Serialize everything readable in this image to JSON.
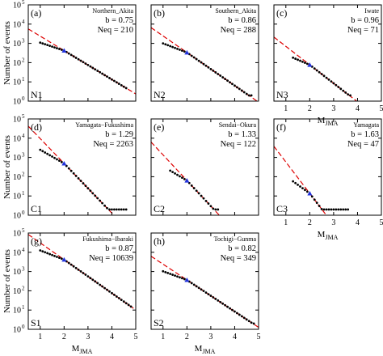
{
  "figure": {
    "ylabel": "Number of events",
    "xlabel_main": "M",
    "xlabel_sub": "JMA",
    "x_ticks": [
      "1",
      "2",
      "3",
      "4",
      "5"
    ],
    "y_tick_base": "10",
    "y_tick_exps": [
      "0",
      "1",
      "2",
      "3",
      "4",
      "5"
    ]
  },
  "chart_data": [
    {
      "type": "scatter",
      "letter": "(a)",
      "region": "Northern_Akita",
      "b_text": "b = 0.75",
      "neq_text": "Neq = 210",
      "code": "N1",
      "b": 0.75,
      "neq": 210,
      "mc": 2.0,
      "mmin": 1.0,
      "mmax": 4.6,
      "log_n_at_1": 3.3,
      "xlim": [
        0.5,
        5
      ],
      "ylim_log10": [
        0,
        5
      ],
      "show_xlabel": false
    },
    {
      "type": "scatter",
      "letter": "(b)",
      "region": "Southern_Akita",
      "b_text": "b = 0.86",
      "neq_text": "Neq = 288",
      "code": "N2",
      "b": 0.86,
      "neq": 288,
      "mc": 2.0,
      "mmin": 1.0,
      "mmax": 4.7,
      "log_n_at_1": 3.3,
      "xlim": [
        0.5,
        5
      ],
      "ylim_log10": [
        0,
        5
      ],
      "show_xlabel": false
    },
    {
      "type": "scatter",
      "letter": "(c)",
      "region": "Iwate",
      "b_text": "b = 0.96",
      "neq_text": "Neq = 71",
      "code": "N3",
      "b": 0.96,
      "neq": 71,
      "mc": 2.0,
      "mmin": 1.3,
      "mmax": 3.7,
      "log_n_at_1": 2.75,
      "xlim": [
        0.5,
        5
      ],
      "ylim_log10": [
        0,
        5
      ],
      "show_xlabel": true
    },
    {
      "type": "scatter",
      "letter": "(d)",
      "region": "Yamagata−Fukushima",
      "b_text": "b = 1.29",
      "neq_text": "Neq = 2263",
      "code": "C1",
      "b": 1.29,
      "neq": 2263,
      "mc": 2.0,
      "mmin": 1.0,
      "mmax": 4.6,
      "log_n_at_1": 3.85,
      "xlim": [
        0.5,
        5
      ],
      "ylim_log10": [
        0,
        5
      ],
      "show_xlabel": false
    },
    {
      "type": "scatter",
      "letter": "(e)",
      "region": "Sendai−Okura",
      "b_text": "b = 1.33",
      "neq_text": "Neq = 122",
      "code": "C2",
      "b": 1.33,
      "neq": 122,
      "mc": 2.0,
      "mmin": 1.3,
      "mmax": 3.3,
      "log_n_at_1": 3.0,
      "xlim": [
        0.5,
        5
      ],
      "ylim_log10": [
        0,
        5
      ],
      "show_xlabel": false
    },
    {
      "type": "scatter",
      "letter": "(f)",
      "region": "Yamagata",
      "b_text": "b = 1.63",
      "neq_text": "Neq = 47",
      "code": "C3",
      "b": 1.63,
      "neq": 47,
      "mc": 2.0,
      "mmin": 1.3,
      "mmax": 3.6,
      "log_n_at_1": 2.6,
      "xlim": [
        0.5,
        5
      ],
      "ylim_log10": [
        0,
        5
      ],
      "show_xlabel": true
    },
    {
      "type": "scatter",
      "letter": "(g)",
      "region": "Fukushima−Ibaraki",
      "b_text": "b = 0.87",
      "neq_text": "Neq = 10639",
      "code": "S1",
      "b": 0.87,
      "neq": 10639,
      "mc": 2.0,
      "mmin": 1.0,
      "mmax": 4.8,
      "log_n_at_1": 4.4,
      "xlim": [
        0.5,
        5
      ],
      "ylim_log10": [
        0,
        5
      ],
      "show_xlabel": true
    },
    {
      "type": "scatter",
      "letter": "(h)",
      "region": "Tochigi−Gunma",
      "b_text": "b = 0.82",
      "neq_text": "Neq = 349",
      "code": "S2",
      "b": 0.82,
      "neq": 349,
      "mc": 2.0,
      "mmin": 1.0,
      "mmax": 4.8,
      "log_n_at_1": 3.3,
      "xlim": [
        0.5,
        5
      ],
      "ylim_log10": [
        0,
        5
      ],
      "show_xlabel": true
    }
  ],
  "colors": {
    "points": "#000000",
    "fit_line": "#dd0000",
    "mc_marker": "#2233dd",
    "axis": "#000000"
  }
}
